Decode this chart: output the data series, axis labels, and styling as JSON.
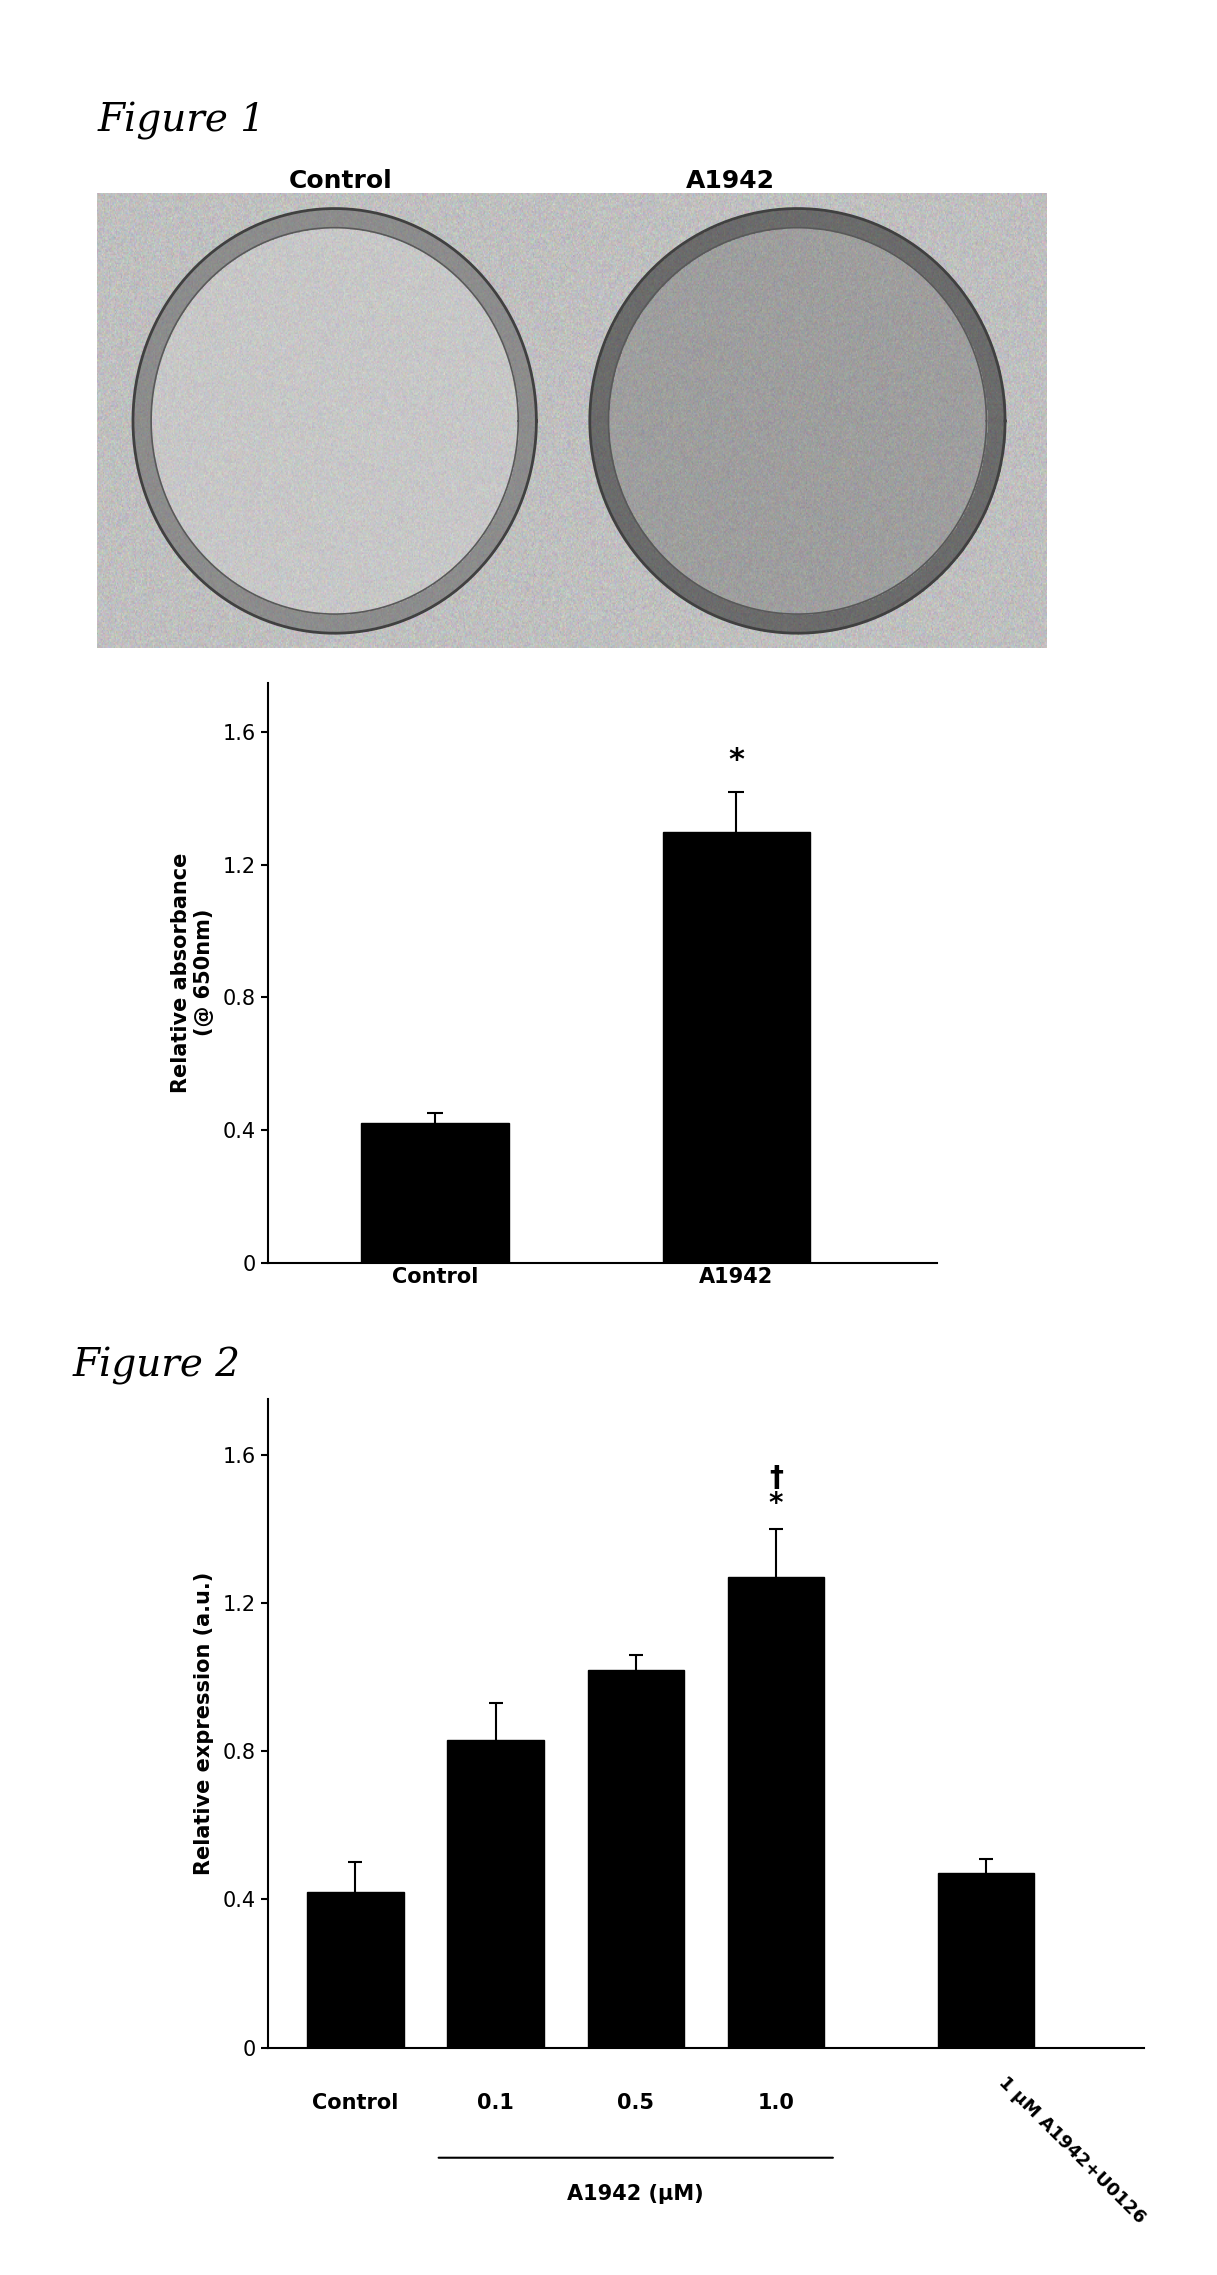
{
  "fig1_title": "Figure 1",
  "fig2_title": "Figure 2",
  "fig1_bar_categories": [
    "Control",
    "A1942"
  ],
  "fig1_bar_values": [
    0.42,
    1.3
  ],
  "fig1_bar_errors": [
    0.03,
    0.12
  ],
  "fig1_ylabel_line1": "Relative absorbance",
  "fig1_ylabel_line2": "(@ 650nm)",
  "fig1_ylim": [
    0,
    1.75
  ],
  "fig1_yticks": [
    0,
    0.4,
    0.8,
    1.2,
    1.6
  ],
  "fig1_star_label": "*",
  "fig2_bar_categories": [
    "Control",
    "0.1",
    "0.5",
    "1.0",
    "1 μM A1942+U0126"
  ],
  "fig2_bar_values": [
    0.42,
    0.83,
    1.02,
    1.27,
    0.47
  ],
  "fig2_bar_errors": [
    0.08,
    0.1,
    0.04,
    0.13,
    0.04
  ],
  "fig2_ylabel": "Relative expression (a.u.)",
  "fig2_xlabel": "A1942 (μM)",
  "fig2_ylim": [
    0,
    1.75
  ],
  "fig2_yticks": [
    0,
    0.4,
    0.8,
    1.2,
    1.6
  ],
  "fig2_dagger_label": "†",
  "fig2_star_label": "*",
  "bar_color": "#000000",
  "background_color": "#ffffff",
  "img_label_control": "Control",
  "img_label_a1942": "A1942"
}
